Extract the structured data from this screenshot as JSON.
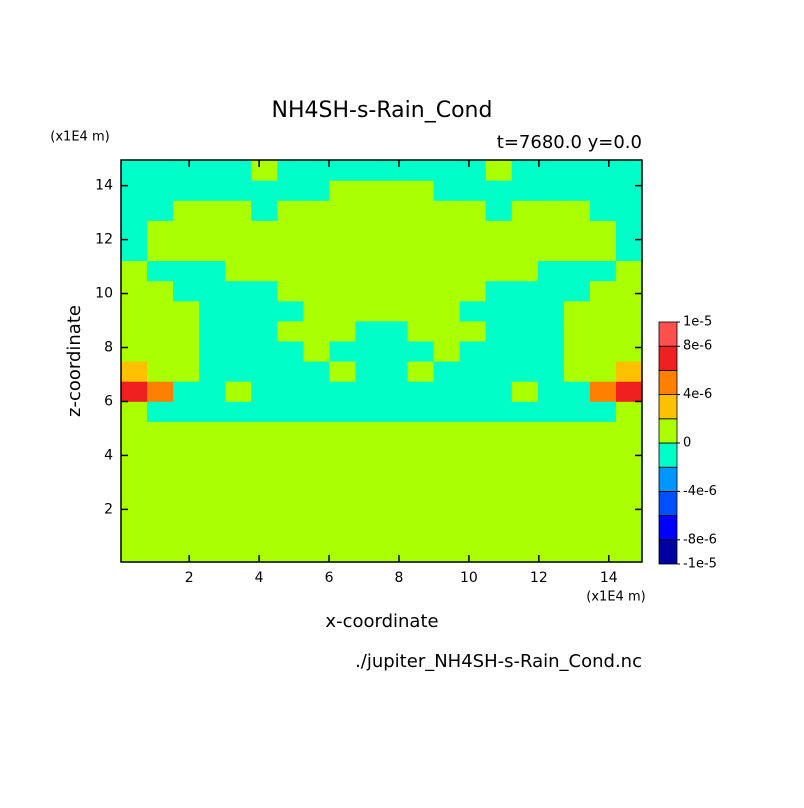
{
  "chart_data": {
    "type": "contour",
    "title": "NH4SH-s-Rain_Cond",
    "subtitle": "t=7680.0 y=0.0",
    "x_label": "x-coordinate",
    "y_label": "z-coordinate",
    "x_unit": "(x1E4 m)",
    "y_unit": "(x1E4 m)",
    "source": "./jupiter_NH4SH-s-Rain_Cond.nc",
    "xlim": [
      0.05,
      14.95
    ],
    "ylim": [
      0.05,
      14.95
    ],
    "xticks": [
      2,
      4,
      6,
      8,
      10,
      12,
      14
    ],
    "yticks": [
      2,
      4,
      6,
      8,
      10,
      12,
      14
    ],
    "z": [
      [
        1e-06,
        1e-06,
        1e-06,
        1e-06,
        1e-06,
        1e-06,
        1e-06,
        1e-06,
        1e-06,
        1e-06,
        1e-06,
        1e-06,
        1e-06,
        1e-06,
        1e-06,
        1e-06,
        1e-06,
        1e-06,
        1e-06,
        1e-06
      ],
      [
        1e-06,
        1e-06,
        1e-06,
        1e-06,
        1e-06,
        1e-06,
        1e-06,
        1e-06,
        1e-06,
        1e-06,
        1e-06,
        1e-06,
        1e-06,
        1e-06,
        1e-06,
        1e-06,
        1e-06,
        1e-06,
        1e-06,
        1e-06
      ],
      [
        1e-06,
        1e-06,
        1e-06,
        1e-06,
        1e-06,
        1e-06,
        1e-06,
        1e-06,
        1e-06,
        1e-06,
        1e-06,
        1e-06,
        1e-06,
        1e-06,
        1e-06,
        1e-06,
        1e-06,
        1e-06,
        1e-06,
        1e-06
      ],
      [
        1e-06,
        1e-06,
        1e-06,
        1e-06,
        1e-06,
        1e-06,
        1e-06,
        1e-06,
        1e-06,
        1e-06,
        1e-06,
        1e-06,
        1e-06,
        1e-06,
        1e-06,
        1e-06,
        1e-06,
        1e-06,
        1e-06,
        1e-06
      ],
      [
        1e-06,
        1e-06,
        1e-06,
        1e-06,
        1e-06,
        1e-06,
        1e-06,
        1e-06,
        1e-06,
        1e-06,
        1e-06,
        1e-06,
        1e-06,
        1e-06,
        1e-06,
        1e-06,
        1e-06,
        1e-06,
        1e-06,
        1e-06
      ],
      [
        1e-06,
        1e-06,
        1e-06,
        1e-06,
        1e-06,
        1e-06,
        1e-06,
        1e-06,
        1e-06,
        1e-06,
        1e-06,
        1e-06,
        1e-06,
        1e-06,
        1e-06,
        1e-06,
        1e-06,
        1e-06,
        1e-06,
        1e-06
      ],
      [
        1e-06,
        1e-06,
        1e-06,
        1e-06,
        1e-06,
        1e-06,
        1e-06,
        1e-06,
        1e-06,
        1e-06,
        1e-06,
        1e-06,
        1e-06,
        1e-06,
        1e-06,
        1e-06,
        1e-06,
        1e-06,
        1e-06,
        1e-06
      ],
      [
        1e-06,
        -1e-06,
        -1e-06,
        -1e-06,
        -1e-06,
        -1e-06,
        -1e-06,
        -1e-06,
        -1e-06,
        -1e-06,
        -1e-06,
        -1e-06,
        -1e-06,
        -1e-06,
        -1e-06,
        -1e-06,
        -1e-06,
        -1e-06,
        -1e-06,
        1e-06
      ],
      [
        7e-06,
        5e-06,
        -1e-06,
        -1e-06,
        1e-06,
        -1e-06,
        -1e-06,
        -1e-06,
        -1e-06,
        -1e-06,
        -1e-06,
        -1e-06,
        -1e-06,
        -1e-06,
        -1e-06,
        1e-06,
        -1e-06,
        -1e-06,
        5e-06,
        7e-06
      ],
      [
        3e-06,
        1e-06,
        1e-06,
        -1e-06,
        -1e-06,
        -1e-06,
        -1e-06,
        -1e-06,
        1e-06,
        -1e-06,
        -1e-06,
        1e-06,
        -1e-06,
        -1e-06,
        -1e-06,
        -1e-06,
        -1e-06,
        1e-06,
        1e-06,
        3e-06
      ],
      [
        1e-06,
        1e-06,
        1e-06,
        -1e-06,
        -1e-06,
        -1e-06,
        -1e-06,
        1e-06,
        -1e-06,
        -1e-06,
        -1e-06,
        -1e-06,
        1e-06,
        -1e-06,
        -1e-06,
        -1e-06,
        -1e-06,
        1e-06,
        1e-06,
        1e-06
      ],
      [
        1e-06,
        1e-06,
        1e-06,
        -1e-06,
        -1e-06,
        -1e-06,
        1e-06,
        1e-06,
        1e-06,
        -1e-06,
        -1e-06,
        1e-06,
        1e-06,
        1e-06,
        -1e-06,
        -1e-06,
        -1e-06,
        1e-06,
        1e-06,
        1e-06
      ],
      [
        1e-06,
        1e-06,
        1e-06,
        -1e-06,
        -1e-06,
        -1e-06,
        -1e-06,
        1e-06,
        1e-06,
        1e-06,
        1e-06,
        1e-06,
        1e-06,
        -1e-06,
        -1e-06,
        -1e-06,
        -1e-06,
        1e-06,
        1e-06,
        1e-06
      ],
      [
        1e-06,
        1e-06,
        -1e-06,
        -1e-06,
        -1e-06,
        -1e-06,
        1e-06,
        1e-06,
        1e-06,
        1e-06,
        1e-06,
        1e-06,
        1e-06,
        1e-06,
        -1e-06,
        -1e-06,
        -1e-06,
        -1e-06,
        1e-06,
        1e-06
      ],
      [
        1e-06,
        -1e-06,
        -1e-06,
        -1e-06,
        1e-06,
        1e-06,
        1e-06,
        1e-06,
        1e-06,
        1e-06,
        1e-06,
        1e-06,
        1e-06,
        1e-06,
        1e-06,
        1e-06,
        -1e-06,
        -1e-06,
        -1e-06,
        1e-06
      ],
      [
        -1e-06,
        1e-06,
        1e-06,
        1e-06,
        1e-06,
        1e-06,
        1e-06,
        1e-06,
        1e-06,
        1e-06,
        1e-06,
        1e-06,
        1e-06,
        1e-06,
        1e-06,
        1e-06,
        1e-06,
        1e-06,
        1e-06,
        -1e-06
      ],
      [
        -1e-06,
        1e-06,
        1e-06,
        1e-06,
        1e-06,
        1e-06,
        1e-06,
        1e-06,
        1e-06,
        1e-06,
        1e-06,
        1e-06,
        1e-06,
        1e-06,
        1e-06,
        1e-06,
        1e-06,
        1e-06,
        1e-06,
        -1e-06
      ],
      [
        -1e-06,
        -1e-06,
        1e-06,
        1e-06,
        1e-06,
        -1e-06,
        1e-06,
        1e-06,
        1e-06,
        1e-06,
        1e-06,
        1e-06,
        1e-06,
        1e-06,
        -1e-06,
        1e-06,
        1e-06,
        1e-06,
        -1e-06,
        -1e-06
      ],
      [
        -1e-06,
        -1e-06,
        -1e-06,
        -1e-06,
        -1e-06,
        -1e-06,
        -1e-06,
        -1e-06,
        1e-06,
        1e-06,
        1e-06,
        1e-06,
        -1e-06,
        -1e-06,
        -1e-06,
        -1e-06,
        -1e-06,
        -1e-06,
        -1e-06,
        -1e-06
      ],
      [
        -1e-06,
        -1e-06,
        -1e-06,
        -1e-06,
        -1e-06,
        1e-06,
        -1e-06,
        -1e-06,
        -1e-06,
        -1e-06,
        -1e-06,
        -1e-06,
        -1e-06,
        -1e-06,
        1e-06,
        -1e-06,
        -1e-06,
        -1e-06,
        -1e-06,
        -1e-06
      ]
    ],
    "colorbar": {
      "levels": [
        -1e-05,
        -8e-06,
        -6e-06,
        -4e-06,
        -2e-06,
        0,
        2e-06,
        4e-06,
        6e-06,
        8e-06,
        1e-05
      ],
      "colors": [
        "#0000a0",
        "#0000ff",
        "#0050ff",
        "#0096ff",
        "#00ffc8",
        "#aaff00",
        "#ffc000",
        "#ff7f00",
        "#f02020",
        "#ff5050"
      ],
      "ticks": [
        {
          "value": 1e-05,
          "label": "1e-5"
        },
        {
          "value": 8e-06,
          "label": "8e-6"
        },
        {
          "value": 4e-06,
          "label": "4e-6"
        },
        0,
        {
          "value": -4e-06,
          "label": "-4e-6"
        },
        {
          "value": -8e-06,
          "label": "-8e-6"
        },
        {
          "value": -1e-05,
          "label": "-1e-5"
        }
      ]
    }
  }
}
